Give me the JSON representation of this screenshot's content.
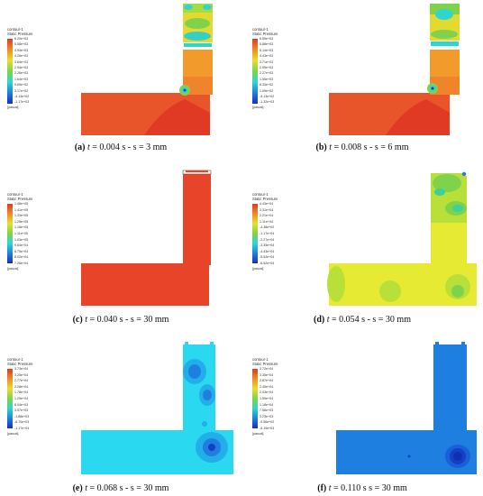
{
  "legend_title_line1": "contour-1",
  "legend_title_line2": "Static Pressure",
  "legend_unit": "[pascal]",
  "panels": [
    {
      "label": "(a)",
      "caption_rest": " = 0.004 s - s = 3 mm",
      "ticks": [
        "6.20e+03",
        "5.58e+03",
        "4.94e+03",
        "4.26e+03",
        "3.64e+03",
        "2.94e+03",
        "2.26e+03",
        "1.64e+03",
        "9.69e+02",
        "3.17e+02",
        "-4.14e+02",
        "-1.17e+03"
      ]
    },
    {
      "label": "(b)",
      "caption_rest": " = 0.008 s - s = 6 mm",
      "ticks": [
        "6.59e+03",
        "5.88e+03",
        "5.14e+03",
        "4.43e+03",
        "3.71e+03",
        "2.99e+03",
        "2.27e+03",
        "1.55e+03",
        "8.33e+02",
        "1.09e+02",
        "-5.13e+02",
        "-1.32e+03"
      ]
    },
    {
      "label": "(c)",
      "caption_rest": " = 0.040 s - s = 30 mm",
      "ticks": [
        "1.46e+05",
        "1.41e+05",
        "1.33e+05",
        "1.25e+05",
        "1.18e+05",
        "1.11e+05",
        "1.03e+05",
        "9.64e+04",
        "8.75e+04",
        "8.02e+04",
        "7.26e+04"
      ]
    },
    {
      "label": "(d)",
      "caption_rest": " = 0.054 s - s = 30 mm",
      "ticks": [
        "4.43e+04",
        "3.31e+04",
        "2.21e+04",
        "1.11e+04",
        "-4.38e+02",
        "-1.17e+04",
        "-2.27e+04",
        "-3.35e+04",
        "-4.43e+04",
        "-5.52e+04",
        "-6.52e+04"
      ]
    },
    {
      "label": "(e)",
      "caption_rest": " = 0.068 s - s = 30 mm",
      "ticks": [
        "3.73e+04",
        "3.25e+04",
        "2.77e+04",
        "2.28e+04",
        "1.78e+04",
        "1.29e+04",
        "8.04e+03",
        "3.57e+03",
        "-1.88e+03",
        "-6.70e+03",
        "-1.17e+04"
      ]
    },
    {
      "label": "(f)",
      "caption_rest": " s = 30 mm",
      "ticks": [
        "3.72e+04",
        "3.35e+04",
        "2.87e+04",
        "2.45e+04",
        "2.03e+04",
        "1.59e+04",
        "1.18e+04",
        "7.56e+03",
        "3.23e+03",
        "-9.56e+02",
        "-5.19e+03"
      ]
    }
  ],
  "captions": {
    "a": {
      "label": "(a)",
      "t": "t",
      "rest": " = 0.004 s - s = 3 mm"
    },
    "b": {
      "label": "(b)",
      "t": "t",
      "rest": " = 0.008 s - s = 6 mm"
    },
    "c": {
      "label": "(c)",
      "t": "t",
      "rest": " = 0.040 s - s = 30 mm"
    },
    "d": {
      "label": "(d)",
      "t": "t",
      "rest": " = 0.054 s - s = 30 mm"
    },
    "e": {
      "label": "(e)",
      "t": "t",
      "rest": " = 0.068 s - s = 30 mm"
    },
    "f": {
      "label": "(f)",
      "t": "t",
      "rest": " = 0.110 s s = 30 mm"
    }
  },
  "colors": {
    "red": "#e8442a",
    "orange": "#f07a22",
    "light_orange": "#f29a2c",
    "yellow": "#e7e62f",
    "green": "#7fd34a",
    "cyan": "#27e0f0",
    "blue": "#1e7fe0",
    "dark_blue": "#1440c8"
  }
}
